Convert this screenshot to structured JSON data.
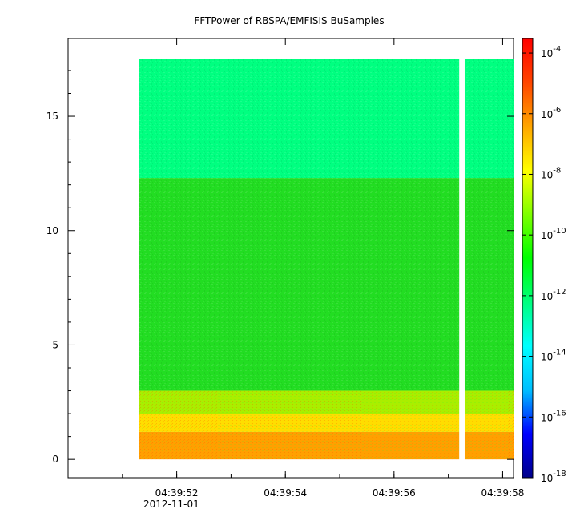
{
  "chart_data": {
    "type": "heatmap",
    "title": "FFTPower of RBSPA/EMFISIS  BuSamples",
    "xlabel": "",
    "ylabel": "",
    "x_axis": {
      "kind": "time",
      "date_label": "2012-11-01",
      "ticks": [
        {
          "t": "04:39:52",
          "label": "04:39:52"
        },
        {
          "t": "04:39:54",
          "label": "04:39:54"
        },
        {
          "t": "04:39:56",
          "label": "04:39:56"
        },
        {
          "t": "04:39:58",
          "label": "04:39:58"
        }
      ],
      "range": [
        "04:39:50",
        "04:39:58.2"
      ]
    },
    "y_axis": {
      "ticks": [
        0,
        5,
        10,
        15
      ],
      "range": [
        -0.8,
        18.4
      ]
    },
    "colorbar": {
      "scale": "log",
      "range": [
        1e-18,
        0.0003
      ],
      "ticks": [
        {
          "base": "10",
          "exp": "-4",
          "value": 0.0001
        },
        {
          "base": "10",
          "exp": "-6",
          "value": 1e-06
        },
        {
          "base": "10",
          "exp": "-8",
          "value": 1e-08
        },
        {
          "base": "10",
          "exp": "-10",
          "value": 1e-10
        },
        {
          "base": "10",
          "exp": "-12",
          "value": 1e-12
        },
        {
          "base": "10",
          "exp": "-14",
          "value": 1e-14
        },
        {
          "base": "10",
          "exp": "-16",
          "value": 1e-16
        },
        {
          "base": "10",
          "exp": "-18",
          "value": 1e-18
        }
      ],
      "colormap": [
        "#00008b",
        "#0000ff",
        "#00bfff",
        "#00ffff",
        "#00ff7f",
        "#00ff00",
        "#7fff00",
        "#ffff00",
        "#ffa500",
        "#ff4500",
        "#ff0000"
      ]
    },
    "data_extent": {
      "t_start": "04:39:51.3",
      "t_end": "04:39:58.2",
      "y_min": 0,
      "y_max": 17.5
    },
    "data_gap": {
      "t_start": "04:39:57.2",
      "t_end": "04:39:57.3"
    },
    "bands": [
      {
        "y_from": 12.3,
        "y_to": 17.5,
        "log_power": -12.2,
        "color": "#00ff80"
      },
      {
        "y_from": 3.0,
        "y_to": 12.3,
        "log_power": -10.2,
        "color": "#22dd22"
      },
      {
        "y_from": 2.0,
        "y_to": 3.0,
        "log_power": -9.0,
        "color": "#aaee00"
      },
      {
        "y_from": 1.2,
        "y_to": 2.0,
        "log_power": -8.0,
        "color": "#ffdd00"
      },
      {
        "y_from": 0.0,
        "y_to": 1.2,
        "log_power": -7.0,
        "color": "#ffa000"
      }
    ]
  }
}
